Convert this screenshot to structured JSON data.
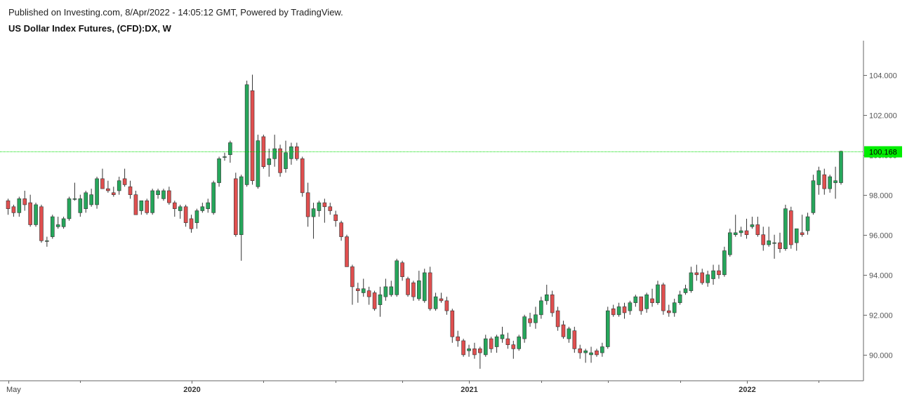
{
  "header": {
    "published": "Published on Investing.com, 8/Apr/2022 - 14:05:12 GMT, Powered by TradingView.",
    "title": "US Dollar Index Futures, (CFD):DX, W"
  },
  "colors": {
    "up": "#26a65b",
    "down": "#e04f4f",
    "wick": "#333333",
    "axis": "#666666",
    "price_line": "#00dd00",
    "price_tag": "#00ee00"
  },
  "chart_data": {
    "type": "candlestick",
    "interval": "W",
    "ylim": [
      88.7,
      105.7
    ],
    "y_ticks": [
      "90.000",
      "92.000",
      "94.000",
      "96.000",
      "98.000",
      "100.000",
      "102.000",
      "104.000"
    ],
    "x_labels": [
      {
        "label": "May",
        "index": 0,
        "major": false
      },
      {
        "label": "2020",
        "index": 33,
        "major": true
      },
      {
        "label": "2021",
        "index": 83,
        "major": true
      },
      {
        "label": "2022",
        "index": 133,
        "major": true
      }
    ],
    "minor_tick_indices": [
      13,
      46,
      59,
      71,
      96,
      108,
      121,
      146
    ],
    "last_price": "100.168",
    "last_value": 100.168,
    "candles": [
      [
        97.7,
        97.8,
        97.0,
        97.3
      ],
      [
        97.4,
        97.5,
        96.9,
        97.1
      ],
      [
        97.1,
        97.9,
        96.9,
        97.8
      ],
      [
        97.8,
        98.2,
        97.2,
        97.5
      ],
      [
        97.6,
        98.0,
        96.4,
        96.5
      ],
      [
        96.5,
        97.6,
        96.4,
        97.5
      ],
      [
        97.4,
        97.5,
        95.6,
        95.7
      ],
      [
        95.7,
        95.9,
        95.4,
        95.7
      ],
      [
        95.9,
        97.0,
        95.8,
        96.9
      ],
      [
        96.4,
        96.9,
        96.3,
        96.5
      ],
      [
        96.4,
        96.9,
        96.3,
        96.8
      ],
      [
        96.8,
        97.9,
        96.7,
        97.8
      ],
      [
        97.8,
        98.6,
        97.7,
        97.8
      ],
      [
        97.1,
        98.0,
        96.9,
        97.8
      ],
      [
        97.3,
        98.2,
        97.1,
        98.1
      ],
      [
        97.5,
        98.3,
        97.4,
        98.0
      ],
      [
        97.5,
        98.9,
        97.3,
        98.8
      ],
      [
        98.8,
        99.3,
        98.3,
        98.3
      ],
      [
        98.3,
        98.7,
        98.1,
        98.2
      ],
      [
        98.1,
        98.4,
        97.9,
        98.0
      ],
      [
        98.2,
        98.9,
        98.0,
        98.7
      ],
      [
        98.8,
        99.3,
        98.4,
        98.5
      ],
      [
        98.4,
        98.7,
        97.8,
        98.0
      ],
      [
        98.0,
        98.2,
        97.0,
        97.0
      ],
      [
        97.2,
        97.7,
        97.0,
        97.7
      ],
      [
        97.7,
        97.8,
        97.0,
        97.1
      ],
      [
        97.1,
        98.3,
        97.0,
        98.2
      ],
      [
        98.0,
        98.3,
        97.8,
        98.2
      ],
      [
        97.8,
        98.3,
        97.7,
        98.2
      ],
      [
        98.2,
        98.4,
        97.5,
        97.6
      ],
      [
        97.6,
        97.7,
        96.9,
        97.3
      ],
      [
        97.2,
        97.5,
        96.8,
        97.4
      ],
      [
        97.4,
        97.5,
        96.4,
        96.6
      ],
      [
        96.8,
        97.0,
        96.1,
        96.3
      ],
      [
        96.6,
        97.3,
        96.3,
        97.2
      ],
      [
        97.2,
        97.6,
        97.1,
        97.4
      ],
      [
        97.3,
        97.8,
        97.1,
        97.6
      ],
      [
        97.1,
        98.7,
        97.0,
        98.6
      ],
      [
        98.6,
        99.9,
        98.4,
        99.8
      ],
      [
        99.9,
        100.1,
        99.7,
        99.9
      ],
      [
        100.0,
        100.7,
        99.6,
        100.6
      ],
      [
        98.8,
        99.1,
        95.9,
        96.0
      ],
      [
        96.0,
        99.0,
        94.7,
        98.9
      ],
      [
        98.5,
        103.7,
        98.4,
        103.5
      ],
      [
        103.2,
        104.0,
        98.5,
        98.7
      ],
      [
        98.4,
        101.0,
        98.3,
        100.7
      ],
      [
        100.9,
        101.0,
        99.3,
        99.4
      ],
      [
        99.5,
        100.3,
        98.9,
        99.8
      ],
      [
        99.8,
        101.0,
        99.4,
        100.3
      ],
      [
        100.3,
        100.5,
        98.9,
        99.1
      ],
      [
        99.3,
        100.7,
        99.1,
        100.1
      ],
      [
        99.8,
        100.6,
        99.5,
        100.4
      ],
      [
        100.4,
        100.6,
        99.7,
        99.8
      ],
      [
        99.8,
        99.9,
        97.9,
        98.1
      ],
      [
        98.1,
        98.6,
        96.4,
        96.9
      ],
      [
        96.9,
        97.6,
        95.8,
        97.3
      ],
      [
        97.2,
        97.7,
        96.9,
        97.6
      ],
      [
        97.6,
        97.8,
        96.6,
        97.4
      ],
      [
        97.4,
        97.6,
        97.0,
        97.2
      ],
      [
        97.0,
        97.2,
        96.4,
        96.7
      ],
      [
        96.6,
        96.7,
        95.7,
        95.9
      ],
      [
        95.9,
        96.0,
        94.4,
        94.4
      ],
      [
        94.4,
        94.5,
        92.5,
        93.4
      ],
      [
        93.3,
        93.6,
        92.6,
        93.2
      ],
      [
        93.1,
        93.8,
        92.9,
        93.3
      ],
      [
        93.2,
        93.4,
        92.5,
        92.9
      ],
      [
        93.1,
        93.2,
        92.2,
        92.3
      ],
      [
        92.5,
        93.4,
        91.9,
        93.0
      ],
      [
        92.9,
        93.8,
        92.7,
        93.4
      ],
      [
        93.0,
        93.7,
        92.9,
        93.4
      ],
      [
        93.0,
        94.8,
        92.9,
        94.7
      ],
      [
        94.6,
        94.7,
        93.7,
        93.9
      ],
      [
        93.8,
        93.9,
        92.9,
        93.0
      ],
      [
        93.6,
        93.7,
        92.7,
        92.9
      ],
      [
        92.8,
        94.2,
        92.7,
        93.7
      ],
      [
        92.7,
        94.3,
        92.6,
        94.1
      ],
      [
        94.1,
        94.4,
        92.2,
        92.3
      ],
      [
        92.3,
        93.1,
        92.2,
        92.9
      ],
      [
        92.8,
        93.1,
        92.6,
        92.7
      ],
      [
        92.7,
        92.9,
        92.0,
        92.2
      ],
      [
        92.2,
        92.3,
        90.6,
        90.9
      ],
      [
        90.9,
        91.2,
        90.4,
        90.7
      ],
      [
        90.7,
        90.8,
        89.9,
        90.0
      ],
      [
        90.2,
        90.5,
        89.9,
        90.3
      ],
      [
        90.3,
        90.6,
        89.8,
        90.0
      ],
      [
        90.3,
        90.4,
        89.3,
        90.1
      ],
      [
        90.0,
        91.0,
        89.9,
        90.8
      ],
      [
        90.8,
        90.9,
        90.1,
        90.3
      ],
      [
        90.4,
        91.0,
        90.1,
        90.9
      ],
      [
        90.8,
        91.4,
        90.6,
        91.0
      ],
      [
        90.8,
        91.1,
        90.3,
        90.5
      ],
      [
        90.5,
        90.7,
        89.8,
        90.3
      ],
      [
        90.3,
        91.0,
        90.2,
        90.9
      ],
      [
        90.8,
        92.0,
        90.6,
        91.9
      ],
      [
        91.8,
        92.1,
        91.4,
        91.6
      ],
      [
        91.6,
        92.4,
        91.3,
        92.0
      ],
      [
        92.0,
        92.9,
        91.8,
        92.7
      ],
      [
        92.7,
        93.5,
        92.5,
        93.0
      ],
      [
        93.0,
        93.2,
        91.9,
        92.1
      ],
      [
        92.2,
        92.4,
        91.2,
        91.4
      ],
      [
        91.5,
        91.7,
        90.8,
        90.9
      ],
      [
        90.8,
        91.4,
        90.6,
        91.3
      ],
      [
        91.2,
        91.4,
        90.1,
        90.3
      ],
      [
        90.3,
        90.5,
        89.8,
        90.1
      ],
      [
        90.1,
        90.3,
        89.6,
        90.2
      ],
      [
        90.0,
        90.4,
        89.6,
        90.1
      ],
      [
        90.2,
        90.3,
        89.9,
        90.0
      ],
      [
        90.1,
        90.6,
        89.9,
        90.4
      ],
      [
        90.4,
        92.4,
        90.3,
        92.2
      ],
      [
        92.3,
        92.5,
        91.9,
        92.0
      ],
      [
        92.0,
        92.6,
        91.9,
        92.4
      ],
      [
        92.4,
        92.6,
        91.8,
        92.1
      ],
      [
        92.2,
        92.7,
        92.0,
        92.6
      ],
      [
        92.6,
        93.0,
        92.4,
        92.9
      ],
      [
        92.9,
        92.9,
        92.0,
        92.2
      ],
      [
        92.3,
        93.1,
        92.1,
        93.0
      ],
      [
        92.8,
        93.3,
        92.4,
        92.6
      ],
      [
        92.6,
        93.7,
        92.5,
        93.5
      ],
      [
        93.5,
        93.6,
        92.0,
        92.2
      ],
      [
        92.2,
        92.5,
        91.9,
        92.1
      ],
      [
        92.1,
        92.8,
        91.9,
        92.6
      ],
      [
        92.6,
        93.2,
        92.5,
        93.0
      ],
      [
        93.1,
        93.5,
        93.0,
        93.3
      ],
      [
        93.2,
        94.4,
        93.1,
        94.1
      ],
      [
        94.1,
        94.5,
        93.7,
        94.0
      ],
      [
        94.1,
        94.3,
        93.5,
        93.6
      ],
      [
        93.6,
        94.2,
        93.4,
        94.0
      ],
      [
        93.8,
        94.5,
        93.5,
        94.2
      ],
      [
        94.2,
        94.5,
        93.8,
        94.0
      ],
      [
        94.0,
        95.4,
        93.9,
        95.2
      ],
      [
        95.0,
        96.3,
        94.9,
        96.1
      ],
      [
        96.0,
        97.0,
        95.9,
        96.1
      ],
      [
        96.1,
        96.4,
        95.9,
        96.2
      ],
      [
        96.2,
        96.8,
        95.8,
        96.0
      ],
      [
        96.4,
        96.9,
        96.3,
        96.5
      ],
      [
        96.5,
        96.9,
        95.9,
        96.0
      ],
      [
        96.0,
        96.4,
        95.2,
        95.5
      ],
      [
        95.5,
        96.4,
        95.4,
        95.7
      ],
      [
        95.6,
        96.0,
        94.8,
        95.6
      ],
      [
        95.6,
        96.1,
        95.1,
        95.3
      ],
      [
        95.3,
        97.5,
        95.2,
        97.3
      ],
      [
        97.2,
        97.4,
        95.3,
        95.5
      ],
      [
        95.6,
        96.3,
        95.2,
        96.3
      ],
      [
        96.1,
        97.0,
        95.9,
        96.0
      ],
      [
        96.2,
        97.1,
        96.0,
        96.9
      ],
      [
        97.1,
        99.0,
        97.0,
        98.7
      ],
      [
        98.5,
        99.4,
        98.0,
        99.2
      ],
      [
        99.0,
        99.3,
        98.0,
        98.3
      ],
      [
        98.3,
        99.0,
        98.1,
        98.9
      ],
      [
        98.6,
        99.4,
        97.8,
        98.7
      ],
      [
        98.6,
        100.2,
        98.5,
        100.17
      ]
    ]
  }
}
